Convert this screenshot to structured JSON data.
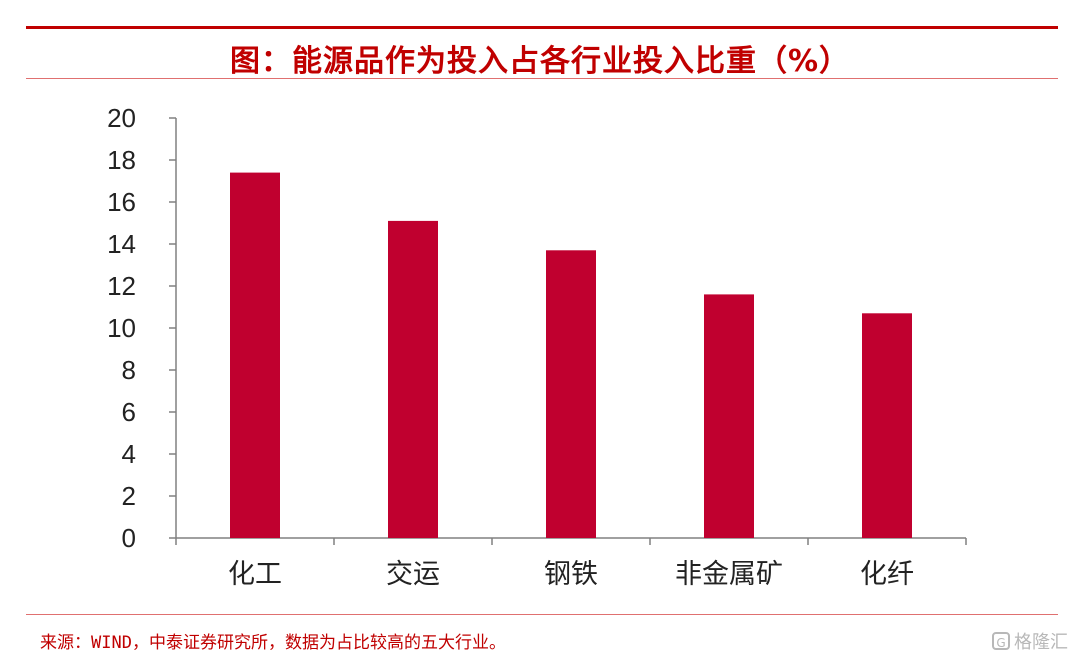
{
  "header": {
    "title": "图：能源品作为投入占各行业投入比重（%）"
  },
  "footer": {
    "source": "来源：WIND，中泰证券研究所，数据为占比较高的五大行业。",
    "watermark": "格隆汇"
  },
  "chart_data": {
    "type": "bar",
    "title": "图：能源品作为投入占各行业投入比重（%）",
    "categories": [
      "化工",
      "交运",
      "钢铁",
      "非金属矿",
      "化纤"
    ],
    "values": [
      17.4,
      15.1,
      13.7,
      11.6,
      10.7
    ],
    "yticks": [
      "0",
      "2",
      "4",
      "6",
      "8",
      "10",
      "12",
      "14",
      "16",
      "18",
      "20"
    ],
    "ylim": [
      0,
      20
    ],
    "xlabel": "",
    "ylabel": "",
    "grid": false,
    "bar_color": "#c0002f"
  }
}
